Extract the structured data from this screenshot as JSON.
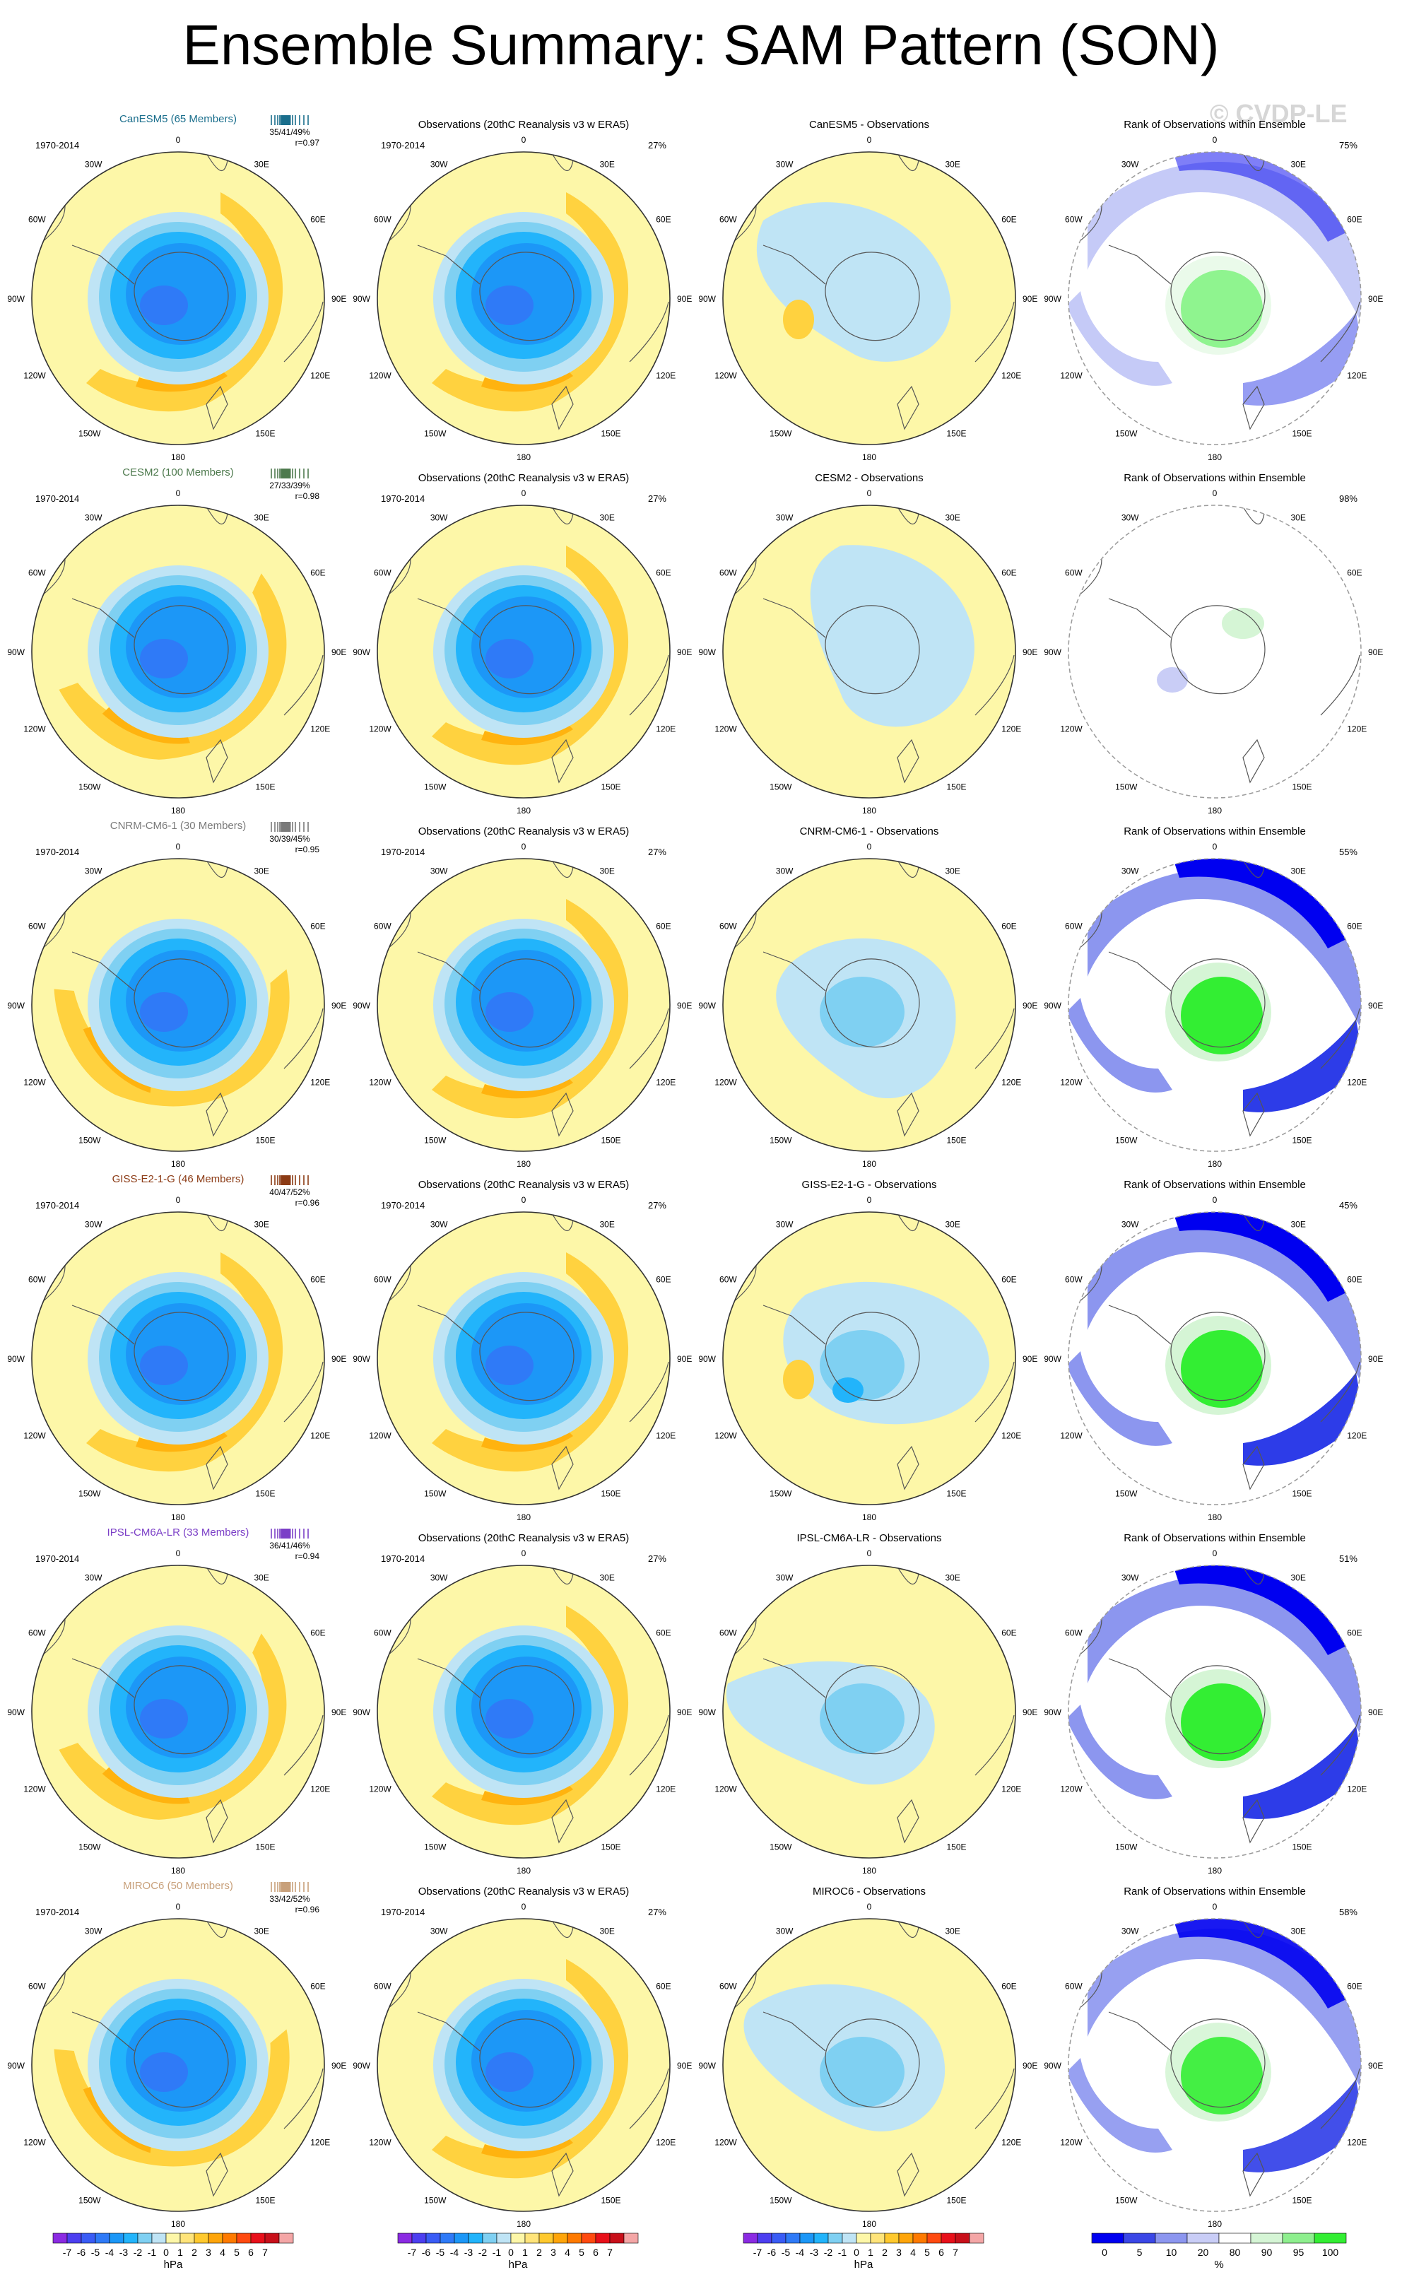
{
  "title": "Ensemble Summary: SAM Pattern (SON)",
  "watermark": "© CVDP-LE",
  "common": {
    "period": "1970-2014",
    "obs_title": "Observations (20thC Reanalysis v3 w ERA5)",
    "rank_title": "Rank of Observations within Ensemble",
    "obs_pct": "27%",
    "lon_labels": {
      "n": "0",
      "nne": "30E",
      "ene": "60E",
      "e": "90E",
      "ese": "120E",
      "sse": "150E",
      "s": "180",
      "ssw": "150W",
      "wsw": "120W",
      "w": "90W",
      "wnw": "60W",
      "nnw": "30W"
    }
  },
  "chart_data": [
    {
      "row": 1,
      "type": "polar-contour",
      "model": "CanESM5",
      "panel_title": "CanESM5 (65 Members)",
      "model_color": "#1a6e8c",
      "stats": "35/41/49%",
      "r": "r=0.97",
      "diff_title": "CanESM5 - Observations",
      "rank_pct": "75%"
    },
    {
      "row": 2,
      "type": "polar-contour",
      "model": "CESM2",
      "panel_title": "CESM2 (100 Members)",
      "model_color": "#4e7a4e",
      "stats": "27/33/39%",
      "r": "r=0.98",
      "diff_title": "CESM2 - Observations",
      "rank_pct": "98%"
    },
    {
      "row": 3,
      "type": "polar-contour",
      "model": "CNRM-CM6-1",
      "panel_title": "CNRM-CM6-1 (30 Members)",
      "model_color": "#7a7a7a",
      "stats": "30/39/45%",
      "r": "r=0.95",
      "diff_title": "CNRM-CM6-1 - Observations",
      "rank_pct": "55%"
    },
    {
      "row": 4,
      "type": "polar-contour",
      "model": "GISS-E2-1-G",
      "panel_title": "GISS-E2-1-G (46 Members)",
      "model_color": "#8b3a14",
      "stats": "40/47/52%",
      "r": "r=0.96",
      "diff_title": "GISS-E2-1-G - Observations",
      "rank_pct": "45%"
    },
    {
      "row": 5,
      "type": "polar-contour",
      "model": "IPSL-CM6A-LR",
      "panel_title": "IPSL-CM6A-LR (33 Members)",
      "model_color": "#7b3fc7",
      "stats": "36/41/46%",
      "r": "r=0.94",
      "diff_title": "IPSL-CM6A-LR - Observations",
      "rank_pct": "51%"
    },
    {
      "row": 6,
      "type": "polar-contour",
      "model": "MIROC6",
      "panel_title": "MIROC6 (50 Members)",
      "model_color": "#c8a07a",
      "stats": "33/42/52%",
      "r": "r=0.96",
      "diff_title": "MIROC6 - Observations",
      "rank_pct": "58%"
    }
  ],
  "colorbar_hpa": {
    "ticks": [
      "-7",
      "-6",
      "-5",
      "-4",
      "-3",
      "-2",
      "-1",
      "0",
      "1",
      "2",
      "3",
      "4",
      "5",
      "6",
      "7"
    ],
    "unit": "hPa",
    "colors": [
      "#8b2be2",
      "#4d3ff0",
      "#3a5cf5",
      "#2f7af7",
      "#1c97f7",
      "#22b4fb",
      "#7fd0f2",
      "#bfe4f5",
      "#fdf7a8",
      "#ffe47a",
      "#ffc92e",
      "#ffa50a",
      "#ff7a00",
      "#ff4a10",
      "#e8101a",
      "#c8101a",
      "#f4a6a6"
    ]
  },
  "colorbar_rank": {
    "ticks": [
      "0",
      "5",
      "10",
      "20",
      "80",
      "90",
      "95",
      "100"
    ],
    "unit": "%",
    "colors": [
      "#0000f0",
      "#3b47e6",
      "#8c96ef",
      "#c9cdf6",
      "#ffffff",
      "#d5f5d5",
      "#8eef8e",
      "#33ee33"
    ]
  }
}
